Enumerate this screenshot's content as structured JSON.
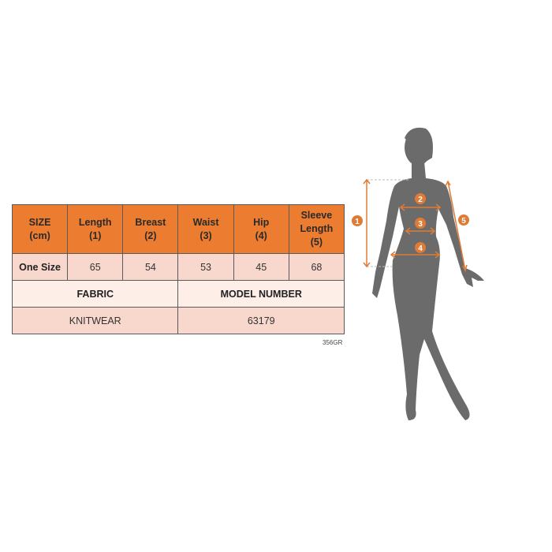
{
  "size_table": {
    "headers": [
      "SIZE\n(cm)",
      "Length\n(1)",
      "Breast\n(2)",
      "Waist\n(3)",
      "Hip\n(4)",
      "Sleeve\nLength\n(5)"
    ],
    "header_lines": [
      [
        "SIZE",
        "(cm)"
      ],
      [
        "Length",
        "(1)"
      ],
      [
        "Breast",
        "(2)"
      ],
      [
        "Waist",
        "(3)"
      ],
      [
        "Hip",
        "(4)"
      ],
      [
        "Sleeve",
        "Length",
        "(5)"
      ]
    ],
    "row": {
      "label": "One Size",
      "values": [
        "65",
        "54",
        "53",
        "45",
        "68"
      ]
    },
    "fabric_label": "FABRIC",
    "model_label": "MODEL NUMBER",
    "fabric_value": "KNITWEAR",
    "model_value": "63179"
  },
  "product_code": "356GR",
  "figure": {
    "markers": [
      "1",
      "2",
      "3",
      "4",
      "5"
    ]
  },
  "colors": {
    "accent": "#ec7c30",
    "silhouette": "#6b6b6b"
  }
}
